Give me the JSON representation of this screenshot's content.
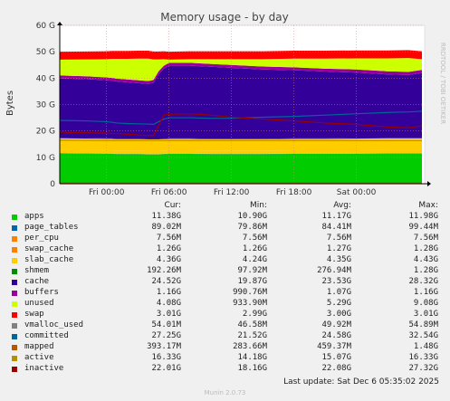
{
  "chart_data": {
    "type": "area",
    "title": "Memory usage - by day",
    "ylabel": "Bytes",
    "side_label": "RRDTOOL / TOBI OETIKER",
    "y_ticks": [
      "0",
      "10 G",
      "20 G",
      "30 G",
      "40 G",
      "50 G",
      "60 G"
    ],
    "y_tick_values": [
      0,
      10,
      20,
      30,
      40,
      50,
      60
    ],
    "ylim": [
      0,
      60
    ],
    "x_ticks": [
      "Fri 00:00",
      "Fri 06:00",
      "Fri 12:00",
      "Fri 18:00",
      "Sat 00:00"
    ],
    "x_tick_hours": [
      0,
      6,
      12,
      18,
      24
    ],
    "xlim_hours": [
      -4.5,
      30.3
    ],
    "grid": true,
    "x_hours": [
      -4.5,
      -2,
      0,
      0.5,
      1,
      2,
      3,
      4,
      4.5,
      5,
      5.5,
      6,
      8,
      10,
      12,
      15,
      18,
      21,
      24,
      27,
      29,
      30.3
    ],
    "stack_series": [
      {
        "name": "apps",
        "color": "#00cc00",
        "values": [
          11.5,
          11.4,
          11.3,
          11.3,
          11.2,
          11.2,
          11.2,
          11.1,
          11.1,
          11.1,
          11.2,
          11.3,
          11.3,
          11.2,
          11.2,
          11.2,
          11.3,
          11.3,
          11.3,
          11.4,
          11.4,
          11.4
        ]
      },
      {
        "name": "page_tables",
        "color": "#0066b3",
        "values": [
          0.09,
          0.09,
          0.09,
          0.09,
          0.09,
          0.09,
          0.09,
          0.09,
          0.09,
          0.09,
          0.09,
          0.09,
          0.09,
          0.09,
          0.09,
          0.09,
          0.09,
          0.09,
          0.09,
          0.09,
          0.09,
          0.09
        ]
      },
      {
        "name": "per_cpu",
        "color": "#ff8000",
        "values": [
          0.01,
          0.01,
          0.01,
          0.01,
          0.01,
          0.01,
          0.01,
          0.01,
          0.01,
          0.01,
          0.01,
          0.01,
          0.01,
          0.01,
          0.01,
          0.01,
          0.01,
          0.01,
          0.01,
          0.01,
          0.01,
          0.01
        ]
      },
      {
        "name": "swap_cache",
        "color": "#ffcc00",
        "values": [
          1.3,
          1.3,
          1.3,
          1.3,
          1.3,
          1.3,
          1.3,
          1.3,
          1.3,
          1.3,
          1.3,
          1.3,
          1.3,
          1.3,
          1.3,
          1.3,
          1.3,
          1.3,
          1.3,
          1.3,
          1.3,
          1.3
        ]
      },
      {
        "name": "slab_cache",
        "color": "#ffcc00",
        "values": [
          4.3,
          4.3,
          4.3,
          4.3,
          4.3,
          4.3,
          4.3,
          4.3,
          4.3,
          4.3,
          4.3,
          4.3,
          4.3,
          4.3,
          4.3,
          4.3,
          4.3,
          4.3,
          4.4,
          4.4,
          4.4,
          4.4
        ]
      },
      {
        "name": "shmem",
        "color": "#330099",
        "values": [
          0.2,
          0.2,
          0.2,
          0.2,
          0.2,
          0.2,
          0.2,
          0.2,
          0.2,
          0.2,
          0.2,
          0.2,
          0.2,
          0.2,
          0.2,
          0.2,
          0.2,
          0.2,
          0.2,
          0.2,
          0.2,
          0.2
        ]
      },
      {
        "name": "cache",
        "color": "#330099",
        "values": [
          22.5,
          22.3,
          22.0,
          21.8,
          21.6,
          21.3,
          21.0,
          20.8,
          21.2,
          24.5,
          26.5,
          27.5,
          27.5,
          27.2,
          26.8,
          26.2,
          25.8,
          25.3,
          24.8,
          24.0,
          23.8,
          24.5
        ]
      },
      {
        "name": "buffers",
        "color": "#990099",
        "values": [
          1.1,
          1.1,
          1.1,
          1.1,
          1.1,
          1.1,
          1.1,
          1.1,
          1.1,
          1.1,
          1.1,
          1.1,
          1.1,
          1.1,
          1.1,
          1.1,
          1.1,
          1.1,
          1.2,
          1.2,
          1.2,
          1.2
        ]
      },
      {
        "name": "unused",
        "color": "#ccff00",
        "values": [
          6.0,
          6.4,
          6.9,
          7.2,
          7.5,
          7.8,
          8.2,
          8.5,
          7.8,
          4.5,
          2.5,
          1.2,
          1.4,
          1.8,
          2.2,
          2.8,
          3.3,
          3.8,
          4.2,
          4.9,
          5.2,
          4.1
        ]
      },
      {
        "name": "swap",
        "color": "#ff0000",
        "values": [
          3.0,
          3.0,
          3.0,
          3.0,
          3.0,
          3.0,
          3.0,
          3.0,
          3.0,
          3.0,
          3.0,
          3.0,
          3.0,
          3.0,
          3.0,
          3.0,
          3.0,
          3.0,
          3.0,
          3.0,
          3.0,
          3.0
        ]
      }
    ],
    "line_series": [
      {
        "name": "vmalloc_used",
        "color": "#808080",
        "values": [
          0.05,
          0.05,
          0.05,
          0.05,
          0.05,
          0.05,
          0.05,
          0.05,
          0.05,
          0.05,
          0.05,
          0.05,
          0.05,
          0.05,
          0.05,
          0.05,
          0.05,
          0.05,
          0.05,
          0.05,
          0.05,
          0.05
        ]
      },
      {
        "name": "committed",
        "color": "#006699",
        "values": [
          24.0,
          23.8,
          23.5,
          23.3,
          23.0,
          22.8,
          22.7,
          22.6,
          22.5,
          23.5,
          24.5,
          25.0,
          25.0,
          24.8,
          24.8,
          25.2,
          25.5,
          26.0,
          26.5,
          27.0,
          27.2,
          27.5
        ]
      },
      {
        "name": "mapped",
        "color": "#b35a00",
        "values": [
          0.4,
          0.4,
          0.4,
          0.4,
          0.4,
          0.4,
          0.4,
          0.4,
          0.4,
          0.4,
          0.4,
          0.4,
          0.4,
          0.4,
          0.4,
          0.4,
          0.4,
          0.4,
          0.4,
          0.4,
          0.4,
          0.4
        ]
      },
      {
        "name": "active",
        "color": "#b38f00",
        "values": [
          16.5,
          16.4,
          16.3,
          16.3,
          16.3,
          16.3,
          16.3,
          16.3,
          16.3,
          16.3,
          16.3,
          16.3,
          16.3,
          16.3,
          16.3,
          16.3,
          16.3,
          16.3,
          16.3,
          16.3,
          16.3,
          16.3
        ]
      },
      {
        "name": "inactive",
        "color": "#990000",
        "values": [
          19.5,
          19.3,
          19.2,
          19.0,
          19.0,
          18.8,
          18.5,
          18.3,
          18.2,
          22.0,
          26.0,
          26.3,
          26.5,
          26.0,
          25.2,
          24.5,
          23.8,
          23.0,
          22.5,
          21.5,
          21.2,
          22.0
        ]
      }
    ]
  },
  "legend": {
    "headers": {
      "cur": "Cur:",
      "min": "Min:",
      "avg": "Avg:",
      "max": "Max:"
    },
    "rows": [
      {
        "name": "apps",
        "color": "#00cc00",
        "cur": "11.38G",
        "min": "10.90G",
        "avg": "11.17G",
        "max": "11.98G"
      },
      {
        "name": "page_tables",
        "color": "#0066b3",
        "cur": "89.02M",
        "min": "79.86M",
        "avg": "84.41M",
        "max": "99.44M"
      },
      {
        "name": "per_cpu",
        "color": "#ff8000",
        "cur": "7.56M",
        "min": "7.56M",
        "avg": "7.56M",
        "max": "7.56M"
      },
      {
        "name": "swap_cache",
        "color": "#ff8000",
        "cur": "1.26G",
        "min": "1.26G",
        "avg": "1.27G",
        "max": "1.28G"
      },
      {
        "name": "slab_cache",
        "color": "#ffcc00",
        "cur": "4.36G",
        "min": "4.24G",
        "avg": "4.35G",
        "max": "4.43G"
      },
      {
        "name": "shmem",
        "color": "#008f00",
        "cur": "192.26M",
        "min": "97.92M",
        "avg": "276.94M",
        "max": "1.28G"
      },
      {
        "name": "cache",
        "color": "#330099",
        "cur": "24.52G",
        "min": "19.87G",
        "avg": "23.53G",
        "max": "28.32G"
      },
      {
        "name": "buffers",
        "color": "#990099",
        "cur": "1.16G",
        "min": "990.76M",
        "avg": "1.07G",
        "max": "1.16G"
      },
      {
        "name": "unused",
        "color": "#ccff00",
        "cur": "4.08G",
        "min": "933.90M",
        "avg": "5.29G",
        "max": "9.08G"
      },
      {
        "name": "swap",
        "color": "#ff0000",
        "cur": "3.01G",
        "min": "2.99G",
        "avg": "3.00G",
        "max": "3.01G"
      },
      {
        "name": "vmalloc_used",
        "color": "#808080",
        "cur": "54.01M",
        "min": "46.58M",
        "avg": "49.92M",
        "max": "54.89M"
      },
      {
        "name": "committed",
        "color": "#006699",
        "cur": "27.25G",
        "min": "21.52G",
        "avg": "24.58G",
        "max": "32.54G"
      },
      {
        "name": "mapped",
        "color": "#b35a00",
        "cur": "393.17M",
        "min": "283.66M",
        "avg": "459.37M",
        "max": "1.48G"
      },
      {
        "name": "active",
        "color": "#b38f00",
        "cur": "16.33G",
        "min": "14.18G",
        "avg": "15.07G",
        "max": "16.33G"
      },
      {
        "name": "inactive",
        "color": "#990000",
        "cur": "22.01G",
        "min": "18.16G",
        "avg": "22.08G",
        "max": "27.32G"
      }
    ]
  },
  "footer": {
    "last_update": "Last update: Sat Dec  6 05:35:02 2025",
    "version": "Munin 2.0.73"
  }
}
